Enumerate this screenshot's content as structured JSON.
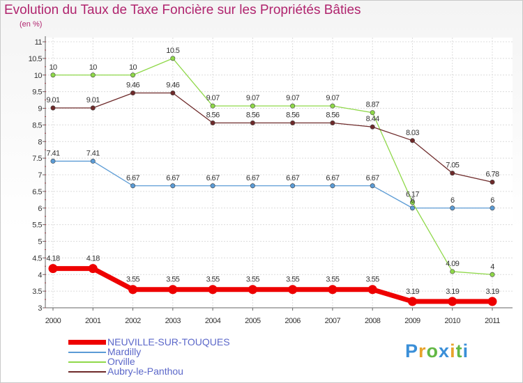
{
  "chart_data": {
    "type": "line",
    "title": "Evolution du Taux de Taxe Foncière sur les Propriétés Bâties",
    "subtitle": "(en %)",
    "xlabel": "",
    "ylabel": "",
    "ylim": [
      3,
      11
    ],
    "yticks": [
      "3",
      "3.5",
      "4",
      "4.5",
      "5",
      "5.5",
      "6",
      "6.5",
      "7",
      "7.5",
      "8",
      "8.5",
      "9",
      "9.5",
      "10",
      "10.5",
      "11"
    ],
    "categories": [
      "2000",
      "2001",
      "2002",
      "2003",
      "2004",
      "2005",
      "2006",
      "2007",
      "2008",
      "2009",
      "2010",
      "2011"
    ],
    "series": [
      {
        "name": "NEUVILLE-SUR-TOUQUES",
        "color": "#ee0000",
        "emphasis": true,
        "values": [
          4.18,
          4.18,
          3.55,
          3.55,
          3.55,
          3.55,
          3.55,
          3.55,
          3.55,
          3.19,
          3.19,
          3.19
        ],
        "labels": [
          "4.18",
          "4.18",
          "3.55",
          "3.55",
          "3.55",
          "3.55",
          "3.55",
          "3.55",
          "3.55",
          "3.19",
          "3.19",
          "3.19"
        ]
      },
      {
        "name": "Mardilly",
        "color": "#5b9bd5",
        "emphasis": false,
        "values": [
          7.41,
          7.41,
          6.67,
          6.67,
          6.67,
          6.67,
          6.67,
          6.67,
          6.67,
          6,
          6,
          6
        ],
        "labels": [
          "7.41",
          "7.41",
          "6.67",
          "6.67",
          "6.67",
          "6.67",
          "6.67",
          "6.67",
          "6.67",
          "6",
          "6",
          "6"
        ]
      },
      {
        "name": "Orville",
        "color": "#8fd849",
        "emphasis": false,
        "values": [
          10,
          10,
          10,
          10.5,
          9.07,
          9.07,
          9.07,
          9.07,
          8.87,
          6.17,
          4.09,
          4
        ],
        "labels": [
          "10",
          "10",
          "10",
          "10.5",
          "9.07",
          "9.07",
          "9.07",
          "9.07",
          "8.87",
          "6.17",
          "4.09",
          "4"
        ]
      },
      {
        "name": "Aubry-le-Panthou",
        "color": "#6e2a2a",
        "emphasis": false,
        "values": [
          9.01,
          9.01,
          9.46,
          9.46,
          8.56,
          8.56,
          8.56,
          8.56,
          8.44,
          8.03,
          7.05,
          6.78
        ],
        "labels": [
          "9.01",
          "9.01",
          "9.46",
          "9.46",
          "8.56",
          "8.56",
          "8.56",
          "8.56",
          "8.44",
          "8.03",
          "7.05",
          "6.78"
        ]
      }
    ],
    "legend_position": "bottom-left"
  },
  "logo": {
    "letters": [
      "P",
      "r",
      "o",
      "x",
      "i",
      "t",
      "i"
    ],
    "colors": [
      "#3a8fd8",
      "#e8a32b",
      "#62b845",
      "#3a8fd8",
      "#e8a32b",
      "#62b845",
      "#3a8fd8"
    ]
  }
}
